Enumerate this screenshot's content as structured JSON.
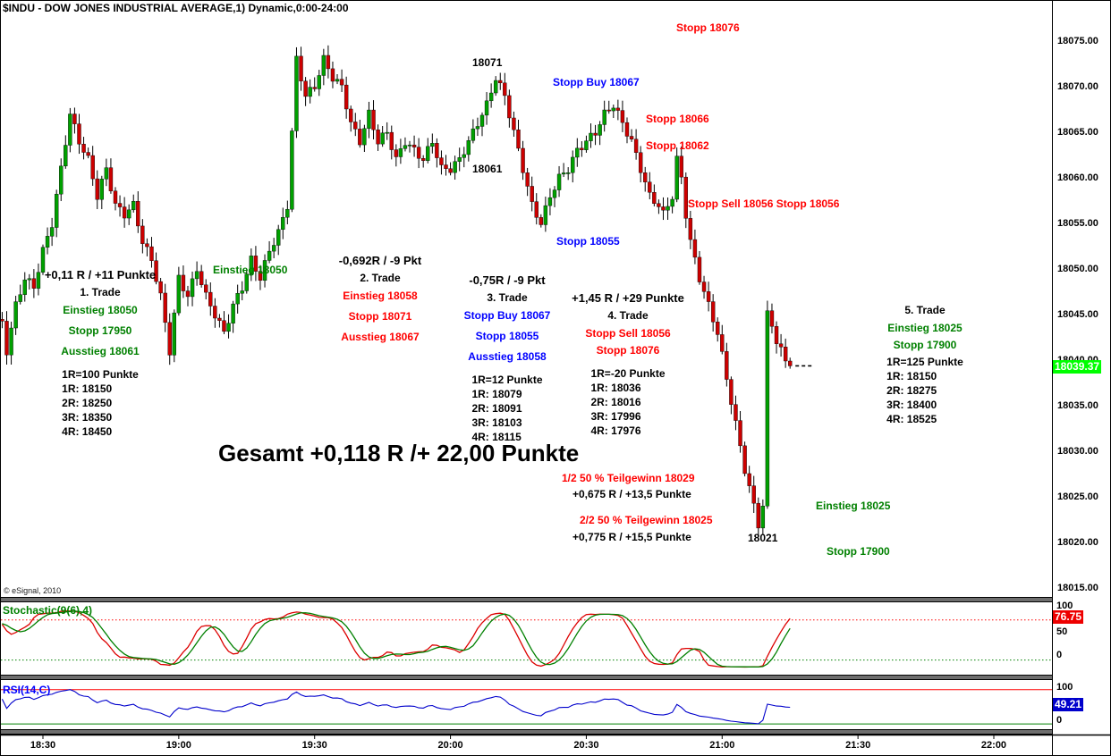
{
  "title": "$INDU - DOW JONES INDUSTRIAL AVERAGE,1) Dynamic,0:00-24:00",
  "copyright": "© eSignal, 2010",
  "colors": {
    "candle_up": "#00a000",
    "candle_down": "#cc0000",
    "annotation_green": "#008000",
    "annotation_red": "#ff0000",
    "annotation_blue": "#0000ff",
    "last_price_badge_bg": "#00ff00",
    "stoch_badge_bg": "#ee0000",
    "rsi_badge_bg": "#0000cc"
  },
  "chart_labels": {
    "stopp_18076": "Stopp 18076",
    "high_18071": "18071",
    "stopp_buy_18067": "Stopp Buy 18067",
    "stopp_18066": "Stopp 18066",
    "stopp_18062": "Stopp 18062",
    "low_18061": "18061",
    "stopp_sell_double": "Stopp Sell 18056 Stopp 18056",
    "stopp_18055": "Stopp 18055",
    "einstieg_18050": "Einstieg 18050",
    "gesamt": "Gesamt +0,118 R /+ 22,00 Punkte",
    "teilgewinn_1": "1/2 50 % Teilgewinn 18029",
    "teilgewinn_1_result": "+0,675 R / +13,5 Punkte",
    "teilgewinn_2": "2/2 50 % Teilgewinn 18025",
    "teilgewinn_2_result": "+0,775 R / +15,5 Punkte",
    "low_18021": "18021",
    "einstieg_18025_right": "Einstieg 18025",
    "stopp_17900_right": "Stopp 17900"
  },
  "trades": [
    {
      "result": "+0,11 R / +11 Punkte",
      "name": "1. Trade",
      "lines": [
        {
          "text": "Einstieg 18050",
          "color": "green"
        },
        {
          "text": "Stopp 17950",
          "color": "green"
        },
        {
          "text": "Ausstieg 18061",
          "color": "green"
        }
      ],
      "r_lines": [
        "1R=100 Punkte",
        "1R: 18150",
        "2R: 18250",
        "3R: 18350",
        "4R: 18450"
      ]
    },
    {
      "result": "-0,692R / -9 Pkt",
      "name": "2. Trade",
      "lines": [
        {
          "text": "Einstieg 18058",
          "color": "red"
        },
        {
          "text": "Stopp 18071",
          "color": "red"
        },
        {
          "text": "Ausstieg 18067",
          "color": "red"
        }
      ],
      "r_lines": []
    },
    {
      "result": "-0,75R / -9 Pkt",
      "name": "3. Trade",
      "lines": [
        {
          "text": "Stopp Buy 18067",
          "color": "blue"
        },
        {
          "text": "Stopp 18055",
          "color": "blue"
        },
        {
          "text": "Ausstieg 18058",
          "color": "blue"
        }
      ],
      "r_lines": [
        "1R=12 Punkte",
        "1R: 18079",
        "2R: 18091",
        "3R: 18103",
        "4R: 18115"
      ]
    },
    {
      "result": "+1,45 R / +29 Punkte",
      "name": "4. Trade",
      "lines": [
        {
          "text": "Stopp Sell 18056",
          "color": "red"
        },
        {
          "text": "Stopp 18076",
          "color": "red"
        }
      ],
      "r_lines": [
        "1R=-20 Punkte",
        "1R: 18036",
        "2R: 18016",
        "3R: 17996",
        "4R: 17976"
      ]
    },
    {
      "result": "",
      "name": "5. Trade",
      "lines": [
        {
          "text": "Einstieg 18025",
          "color": "green"
        },
        {
          "text": "Stopp 17900",
          "color": "green"
        }
      ],
      "r_lines": [
        "1R=125 Punkte",
        "1R: 18150",
        "2R: 18275",
        "3R: 18400",
        "4R: 18525"
      ]
    }
  ],
  "price_axis": {
    "labels": [
      "18075.00",
      "18070.00",
      "18065.00",
      "18060.00",
      "18055.00",
      "18050.00",
      "18045.00",
      "18040.00",
      "18035.00",
      "18030.00",
      "18025.00",
      "18020.00",
      "18015.00"
    ],
    "current": "18039.37"
  },
  "time_axis": [
    "18:30",
    "19:00",
    "19:30",
    "20:00",
    "20:30",
    "21:00",
    "21:30",
    "22:00"
  ],
  "indicators": {
    "stochastic": {
      "label": "Stochastic(9(6),4)",
      "scale": [
        "100",
        "50",
        "0"
      ],
      "value": "76.75"
    },
    "rsi": {
      "label": "RSI(14,C)",
      "scale": [
        "100",
        "0"
      ],
      "value": "49.21"
    }
  },
  "chart_data": {
    "type": "candlestick",
    "symbol": "$INDU",
    "title": "$INDU - DOW JONES INDUSTRIAL AVERAGE,1) Dynamic,0:00-24:00",
    "interval": "1 minute",
    "ylim": [
      18015,
      18075
    ],
    "y_tick_step": 5,
    "x_ticks": [
      "18:30",
      "19:00",
      "19:30",
      "20:00",
      "20:30",
      "21:00",
      "21:30",
      "22:00"
    ],
    "last_price": 18039.37,
    "session_high": 18075,
    "session_low": 18021,
    "stochastic_last": 76.75,
    "rsi_last": 49.21,
    "stochastic_dotted_levels": [
      80,
      15
    ],
    "rsi_solid_levels": [
      88,
      8
    ],
    "price_path_anchors": [
      [
        -30,
        18040
      ],
      [
        -24,
        18044
      ],
      [
        -18,
        18042
      ],
      [
        -13,
        18045
      ],
      [
        -9,
        18044
      ],
      [
        -8,
        18041
      ],
      [
        -6,
        18046
      ],
      [
        -4,
        18049
      ],
      [
        -2,
        18048
      ],
      [
        0,
        18052
      ],
      [
        2,
        18055
      ],
      [
        4,
        18061
      ],
      [
        6,
        18067
      ],
      [
        8,
        18064
      ],
      [
        10,
        18062
      ],
      [
        12,
        18058
      ],
      [
        14,
        18061
      ],
      [
        16,
        18057
      ],
      [
        18,
        18056
      ],
      [
        20,
        18057
      ],
      [
        22,
        18053
      ],
      [
        24,
        18051
      ],
      [
        26,
        18047
      ],
      [
        28,
        18041
      ],
      [
        30,
        18049
      ],
      [
        32,
        18047
      ],
      [
        34,
        18050
      ],
      [
        36,
        18047
      ],
      [
        38,
        18045
      ],
      [
        40,
        18043
      ],
      [
        42,
        18046
      ],
      [
        44,
        18048
      ],
      [
        46,
        18051
      ],
      [
        48,
        18049
      ],
      [
        50,
        18052
      ],
      [
        52,
        18054
      ],
      [
        54,
        18057
      ],
      [
        56,
        18073
      ],
      [
        58,
        18069
      ],
      [
        60,
        18070
      ],
      [
        62,
        18073
      ],
      [
        64,
        18071
      ],
      [
        66,
        18070
      ],
      [
        68,
        18066
      ],
      [
        70,
        18064
      ],
      [
        72,
        18067
      ],
      [
        74,
        18064
      ],
      [
        76,
        18065
      ],
      [
        78,
        18062
      ],
      [
        80,
        18064
      ],
      [
        82,
        18063
      ],
      [
        84,
        18062
      ],
      [
        86,
        18064
      ],
      [
        88,
        18061
      ],
      [
        90,
        18061
      ],
      [
        92,
        18062
      ],
      [
        94,
        18064
      ],
      [
        96,
        18066
      ],
      [
        98,
        18068
      ],
      [
        100,
        18071
      ],
      [
        102,
        18069
      ],
      [
        104,
        18065
      ],
      [
        106,
        18061
      ],
      [
        108,
        18057
      ],
      [
        110,
        18055
      ],
      [
        112,
        18058
      ],
      [
        114,
        18060
      ],
      [
        116,
        18061
      ],
      [
        118,
        18063
      ],
      [
        120,
        18064
      ],
      [
        122,
        18065
      ],
      [
        124,
        18067
      ],
      [
        126,
        18068
      ],
      [
        128,
        18066
      ],
      [
        130,
        18064
      ],
      [
        132,
        18061
      ],
      [
        134,
        18058
      ],
      [
        136,
        18057
      ],
      [
        137,
        18056
      ],
      [
        139,
        18058
      ],
      [
        140,
        18062
      ],
      [
        141,
        18060
      ],
      [
        142,
        18056
      ],
      [
        143,
        18053
      ],
      [
        145,
        18049
      ],
      [
        147,
        18046
      ],
      [
        149,
        18043
      ],
      [
        151,
        18038
      ],
      [
        153,
        18033
      ],
      [
        155,
        18028
      ],
      [
        157,
        18024
      ],
      [
        158,
        18022
      ],
      [
        159,
        18024
      ],
      [
        160,
        18045
      ],
      [
        161,
        18044
      ],
      [
        162,
        18042
      ],
      [
        163,
        18041
      ],
      [
        164,
        18040
      ],
      [
        165,
        18039.37
      ]
    ]
  }
}
